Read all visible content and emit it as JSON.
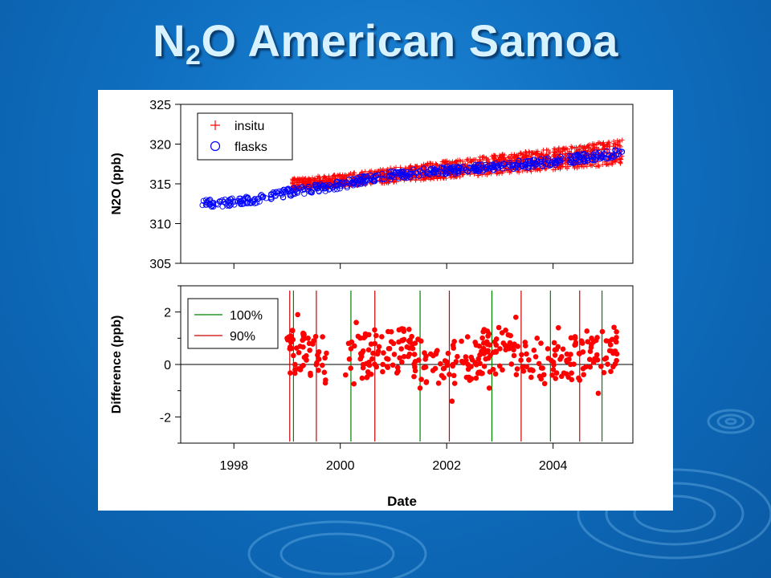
{
  "slide": {
    "title_main": "N",
    "title_sub": "2",
    "title_rest": "O American Samoa"
  },
  "chart_data": [
    {
      "type": "scatter",
      "ylabel": "N2O (ppb)",
      "ylim": [
        305,
        325
      ],
      "yticks": [
        305,
        310,
        315,
        320,
        325
      ],
      "xlim": [
        1997.0,
        2005.5
      ],
      "xticks": [
        1998,
        2000,
        2002,
        2004
      ],
      "legend_position": "top-left",
      "series": [
        {
          "name": "insitu",
          "marker": "plus",
          "color": "#ff0000",
          "trend": [
            [
              1999.1,
              315.0
            ],
            [
              2000.0,
              315.4
            ],
            [
              2001.0,
              316.1
            ],
            [
              2002.0,
              316.8
            ],
            [
              2003.0,
              317.5
            ],
            [
              2004.0,
              318.1
            ],
            [
              2005.3,
              319.0
            ]
          ],
          "spread": 1.4
        },
        {
          "name": "flasks",
          "marker": "circle",
          "color": "#0000ff",
          "trend": [
            [
              1997.4,
              312.5
            ],
            [
              1998.0,
              312.7
            ],
            [
              1998.5,
              313.1
            ],
            [
              1999.0,
              313.9
            ],
            [
              1999.5,
              314.4
            ],
            [
              2000.0,
              314.8
            ],
            [
              2000.5,
              315.6
            ],
            [
              2001.0,
              316.1
            ],
            [
              2002.0,
              316.7
            ],
            [
              2003.0,
              317.2
            ],
            [
              2004.0,
              317.8
            ],
            [
              2005.3,
              318.9
            ]
          ],
          "spread": 0.5
        }
      ]
    },
    {
      "type": "scatter",
      "xlabel": "Date",
      "ylabel": "Difference (ppb)",
      "ylim": [
        -3,
        3
      ],
      "yticks": [
        -2,
        0,
        2
      ],
      "xlim": [
        1997.0,
        2005.5
      ],
      "xticks": [
        1998,
        2000,
        2002,
        2004
      ],
      "zero_line": true,
      "legend_position": "top-left",
      "series": [
        {
          "name": "100%",
          "type": "vline",
          "color": "#008000",
          "x": [
            1999.12,
            2000.2,
            2001.5,
            2002.85,
            2003.95,
            2004.92
          ]
        },
        {
          "name": "90%",
          "type": "vline",
          "color": "#cc0000",
          "x": [
            1999.05,
            1999.55,
            2000.65,
            2002.05,
            2003.4,
            2004.5
          ]
        },
        {
          "name": "difference",
          "marker": "dot",
          "color": "#ff0000",
          "x": [
            1999.0,
            1999.05,
            1999.1,
            1999.15,
            1999.2,
            1999.25,
            1999.5,
            1999.6,
            1999.7,
            2000.1,
            2000.2,
            2000.3,
            2000.4,
            2000.5,
            2000.7,
            2000.8,
            2000.9,
            2001.0,
            2001.2,
            2001.4,
            2001.5,
            2001.6,
            2001.8,
            2002.0,
            2002.1,
            2002.2,
            2002.4,
            2002.6,
            2002.8,
            2003.0,
            2003.2,
            2003.3,
            2003.5,
            2003.7,
            2003.9,
            2004.1,
            2004.3,
            2004.5,
            2004.7,
            2004.85,
            2005.0,
            2005.2
          ],
          "y": [
            1.0,
            0.6,
            1.3,
            0.0,
            1.9,
            -0.2,
            0.9,
            0.2,
            -0.3,
            -0.4,
            0.6,
            1.6,
            0.3,
            -0.5,
            0.4,
            0.0,
            0.2,
            0.8,
            0.3,
            -0.1,
            -0.9,
            0.2,
            0.4,
            0.1,
            -1.4,
            0.3,
            0.0,
            -0.3,
            -0.9,
            0.6,
            1.1,
            1.8,
            0.4,
            1.0,
            0.6,
            1.4,
            0.2,
            -0.6,
            0.5,
            -1.1,
            0.9,
            0.4
          ]
        }
      ]
    }
  ]
}
